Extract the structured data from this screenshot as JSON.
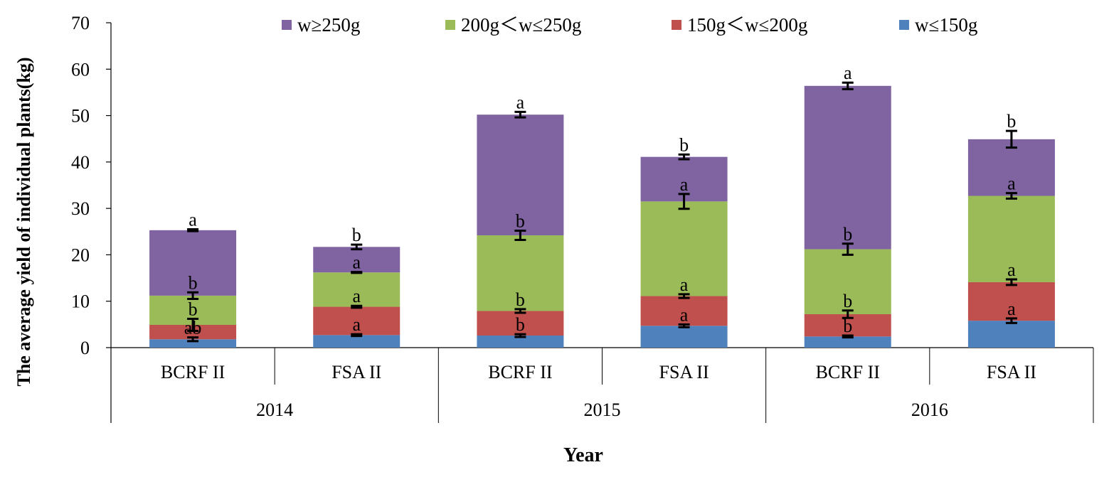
{
  "chart_data": {
    "type": "bar",
    "stacked": true,
    "title": "",
    "xlabel": "Year",
    "ylabel": "The average yield  of individual plants(kg)",
    "ylim": [
      0,
      70
    ],
    "yticks": [
      0,
      10,
      20,
      30,
      40,
      50,
      60,
      70
    ],
    "ytick_labels": [
      "0",
      "10",
      "20",
      "30",
      "40",
      "50",
      "60",
      "70"
    ],
    "legend_position": "top",
    "categories": [
      "BCRF II",
      "FSA II",
      "BCRF II",
      "FSA II",
      "BCRF II",
      "FSA II"
    ],
    "groups": [
      {
        "label": "2014",
        "size": 2
      },
      {
        "label": "2015",
        "size": 2
      },
      {
        "label": "2016",
        "size": 2
      }
    ],
    "series": [
      {
        "name": "w≤150g",
        "color": "#4F81BD",
        "values": [
          1.8,
          2.7,
          2.6,
          4.7,
          2.4,
          5.8
        ],
        "errors": [
          0.4,
          0.2,
          0.3,
          0.3,
          0.2,
          0.5
        ],
        "sig": [
          "ab",
          "a",
          "b",
          "a",
          "b",
          "a"
        ]
      },
      {
        "name": "150g＜w≤200g",
        "color": "#C0504D",
        "values": [
          3.1,
          6.1,
          5.3,
          6.4,
          4.8,
          8.3
        ],
        "errors": [
          1.3,
          0.2,
          0.4,
          0.4,
          0.8,
          0.6
        ],
        "sig": [
          "b",
          "a",
          "b",
          "a",
          "b",
          "a"
        ]
      },
      {
        "name": "200g＜w≤250g",
        "color": "#9BBB59",
        "values": [
          6.3,
          7.4,
          16.3,
          20.4,
          14.0,
          18.6
        ],
        "errors": [
          0.7,
          0.1,
          1.0,
          1.6,
          1.2,
          0.6
        ],
        "sig": [
          "b",
          "a",
          "b",
          "a",
          "b",
          "a"
        ]
      },
      {
        "name": "w≥250g",
        "color": "#8064A2",
        "values": [
          14.1,
          5.5,
          26.0,
          9.6,
          35.2,
          12.2
        ],
        "errors": [
          0.2,
          0.5,
          0.6,
          0.5,
          0.7,
          1.8
        ],
        "sig": [
          "a",
          "b",
          "a",
          "b",
          "a",
          "b"
        ]
      }
    ],
    "legend_order": [
      "w≥250g",
      "200g＜w≤250g",
      "150g＜w≤200g",
      "w≤150g"
    ]
  }
}
